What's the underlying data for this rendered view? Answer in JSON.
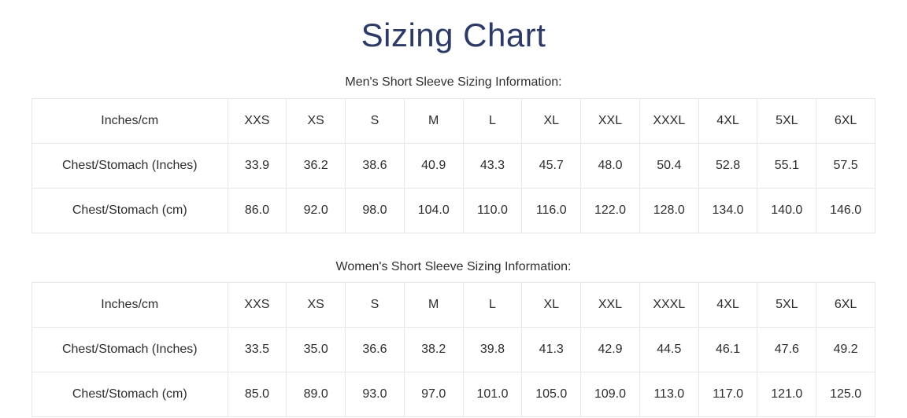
{
  "page": {
    "title": "Sizing Chart"
  },
  "colors": {
    "title": "#2d3a66",
    "text": "#2d2d2d",
    "border": "#e7e7e7"
  },
  "tables": [
    {
      "caption": "Men's Short Sleeve Sizing Information:",
      "header": [
        "Inches/cm",
        "XXS",
        "XS",
        "S",
        "M",
        "L",
        "XL",
        "XXL",
        "XXXL",
        "4XL",
        "5XL",
        "6XL"
      ],
      "rows": [
        {
          "label": "Chest/Stomach (Inches)",
          "values": [
            "33.9",
            "36.2",
            "38.6",
            "40.9",
            "43.3",
            "45.7",
            "48.0",
            "50.4",
            "52.8",
            "55.1",
            "57.5"
          ]
        },
        {
          "label": "Chest/Stomach (cm)",
          "values": [
            "86.0",
            "92.0",
            "98.0",
            "104.0",
            "110.0",
            "116.0",
            "122.0",
            "128.0",
            "134.0",
            "140.0",
            "146.0"
          ]
        }
      ]
    },
    {
      "caption": "Women's Short Sleeve Sizing Information:",
      "header": [
        "Inches/cm",
        "XXS",
        "XS",
        "S",
        "M",
        "L",
        "XL",
        "XXL",
        "XXXL",
        "4XL",
        "5XL",
        "6XL"
      ],
      "rows": [
        {
          "label": "Chest/Stomach (Inches)",
          "values": [
            "33.5",
            "35.0",
            "36.6",
            "38.2",
            "39.8",
            "41.3",
            "42.9",
            "44.5",
            "46.1",
            "47.6",
            "49.2"
          ]
        },
        {
          "label": "Chest/Stomach (cm)",
          "values": [
            "85.0",
            "89.0",
            "93.0",
            "97.0",
            "101.0",
            "105.0",
            "109.0",
            "113.0",
            "117.0",
            "121.0",
            "125.0"
          ]
        }
      ]
    }
  ]
}
